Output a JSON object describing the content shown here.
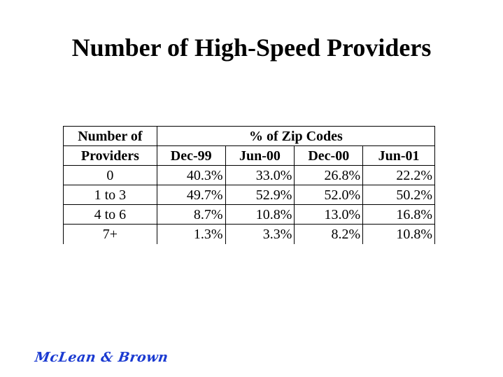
{
  "title": "Number of High-Speed Providers",
  "table": {
    "corner_label_line1": "Number of",
    "corner_label_line2": "Providers",
    "group_header": "% of Zip Codes",
    "columns": [
      "Dec-99",
      "Jun-00",
      "Dec-00",
      "Jun-01"
    ],
    "rows": [
      {
        "label": "0",
        "values": [
          "40.3%",
          "33.0%",
          "26.8%",
          "22.2%"
        ]
      },
      {
        "label": "1 to 3",
        "values": [
          "49.7%",
          "52.9%",
          "52.0%",
          "50.2%"
        ]
      },
      {
        "label": "4 to 6",
        "values": [
          "8.7%",
          "10.8%",
          "13.0%",
          "16.8%"
        ]
      },
      {
        "label": "7+",
        "values": [
          "1.3%",
          "3.3%",
          "8.2%",
          "10.8%"
        ]
      }
    ]
  },
  "logo": {
    "text": "McLean & Brown",
    "color": "#1a3ad1"
  }
}
